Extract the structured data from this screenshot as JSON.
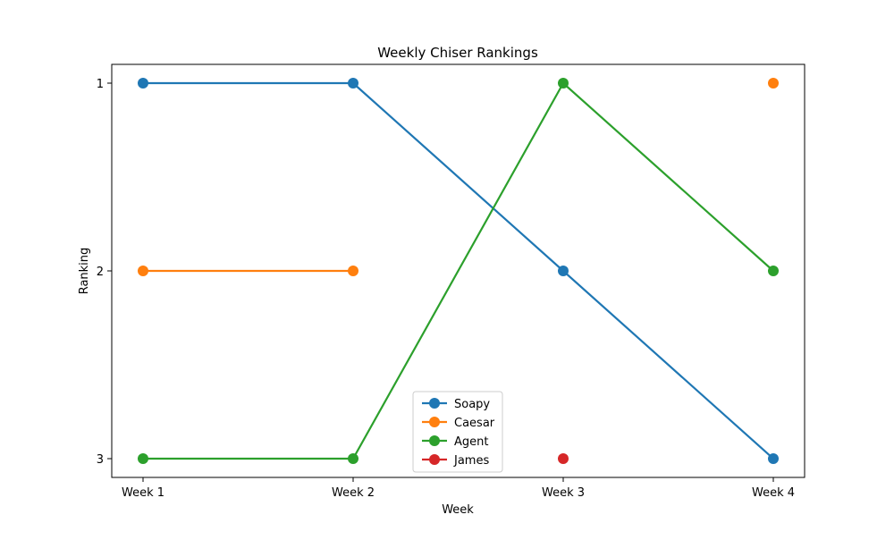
{
  "chart_data": {
    "type": "line",
    "title": "Weekly Chiser Rankings",
    "xlabel": "Week",
    "ylabel": "Ranking",
    "categories": [
      "Week 1",
      "Week 2",
      "Week 3",
      "Week 4"
    ],
    "yticks": [
      1,
      2,
      3
    ],
    "ylim": [
      3.1,
      0.9
    ],
    "y_inverted": true,
    "grid": false,
    "legend_position": "lower center",
    "series": [
      {
        "name": "Soapy",
        "color": "#1f77b4",
        "values": [
          1,
          1,
          2,
          3
        ]
      },
      {
        "name": "Caesar",
        "color": "#ff7f0e",
        "values": [
          2,
          2,
          null,
          1
        ]
      },
      {
        "name": "Agent",
        "color": "#2ca02c",
        "values": [
          3,
          3,
          1,
          2
        ]
      },
      {
        "name": "James",
        "color": "#d62728",
        "values": [
          null,
          null,
          3,
          null
        ]
      }
    ]
  }
}
